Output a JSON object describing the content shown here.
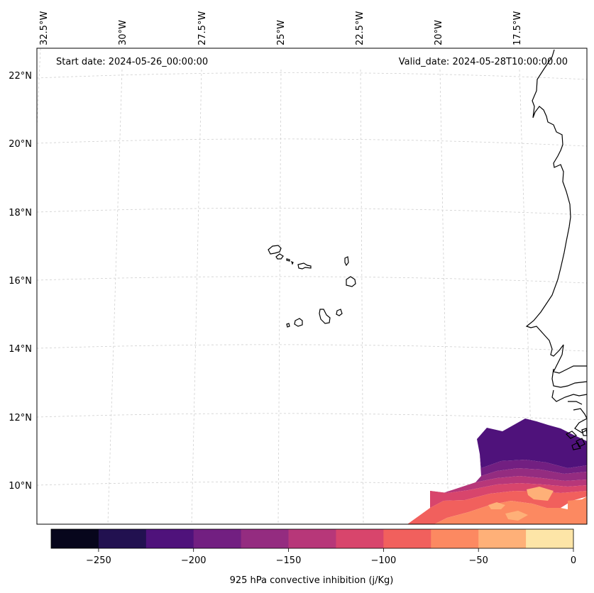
{
  "map": {
    "start_date_label": "Start date: 2024-05-26_00:00:00",
    "valid_date_label": "Valid_date: 2024-05-28T10:00:00.00",
    "lon_labels": [
      "32.5°W",
      "30°W",
      "27.5°W",
      "25°W",
      "22.5°W",
      "20°W",
      "17.5°W"
    ],
    "lat_labels": [
      "22°N",
      "20°N",
      "18°N",
      "16°N",
      "14°N",
      "12°N",
      "10°N"
    ],
    "colorbar": {
      "title": "925 hPa convective inhibition (j/Kg)",
      "tick_labels": [
        "−250",
        "−200",
        "−150",
        "−100",
        "−50",
        "0"
      ],
      "levels": [
        -275,
        -250,
        -225,
        -200,
        -175,
        -150,
        -125,
        -100,
        -75,
        -50,
        -25,
        0
      ],
      "colors": [
        "#07061c",
        "#221150",
        "#4f127b",
        "#721f81",
        "#942c80",
        "#b73779",
        "#d8456c",
        "#f1605d",
        "#fc8961",
        "#feb078",
        "#fde5a7"
      ]
    },
    "field_colors": {
      "band_0": "#4f127b",
      "band_1": "#721f81",
      "band_2": "#942c80",
      "band_3": "#b73779",
      "band_4": "#d8456c",
      "band_5": "#f1605d",
      "band_6": "#fc8961",
      "band_7": "#feb078"
    }
  }
}
